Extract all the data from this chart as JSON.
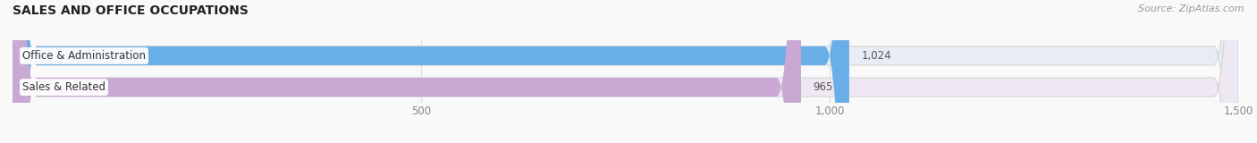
{
  "title": "SALES AND OFFICE OCCUPATIONS",
  "source_text": "Source: ZipAtlas.com",
  "categories": [
    "Office & Administration",
    "Sales & Related"
  ],
  "values": [
    1024,
    965
  ],
  "bar_colors": [
    "#6aaee8",
    "#c9a8d4"
  ],
  "bar_bg_colors": [
    "#e8edf5",
    "#ede8f2"
  ],
  "xlim": [
    0,
    1500
  ],
  "xticks": [
    500,
    1000,
    1500
  ],
  "xtick_labels": [
    "500",
    "1,000",
    "1,500"
  ],
  "bar_height": 0.6,
  "title_fontsize": 10,
  "tick_fontsize": 8.5,
  "value_fontsize": 8.5,
  "label_fontsize": 8.5,
  "background_color": "#f9f9f9"
}
